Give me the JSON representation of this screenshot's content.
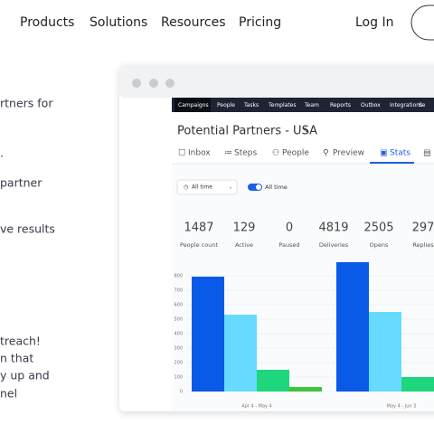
{
  "nav": {
    "links": [
      "Products",
      "Solutions",
      "Resources",
      "Pricing"
    ],
    "login": "Log In"
  },
  "hero_fragments": [
    "rtners for",
    ".",
    "partner",
    "ve results",
    "treach!",
    "n that",
    "y up and",
    "nel"
  ],
  "app": {
    "menu": [
      "Campaigns",
      "People",
      "Tasks",
      "Templates",
      "Team",
      "Reports",
      "Outbox",
      "Integrations",
      "Se"
    ],
    "title": "Potential Partners - USA",
    "tabs": [
      "Inbox",
      "Steps",
      "People",
      "Preview",
      "Stats"
    ],
    "filter": "All time",
    "toggle": "All time",
    "stats": [
      {
        "value": 1487,
        "label": "People count"
      },
      {
        "value": 129,
        "label": "Active"
      },
      {
        "value": 0,
        "label": "Paused"
      },
      {
        "value": 4819,
        "label": "Deliveries"
      },
      {
        "value": 2505,
        "label": "Opens"
      },
      {
        "value": 297,
        "label": "Replies"
      }
    ]
  },
  "chart": {
    "type": "bar",
    "categories": [
      "Apr 4 - May 4",
      "May 4 - Jun 3"
    ],
    "series": [
      {
        "color": "#0a5ae8",
        "values": [
          794,
          894
        ]
      },
      {
        "color": "#66dbff",
        "values": [
          531,
          550
        ]
      },
      {
        "color": "#1ed67c",
        "values": [
          150,
          100
        ]
      },
      {
        "color": "#3ec43a",
        "values": [
          31,
          null
        ]
      }
    ],
    "ylim": [
      0,
      900
    ],
    "yticks": [
      0,
      100,
      200,
      300,
      400,
      500,
      600,
      700,
      800
    ],
    "grid": true
  }
}
